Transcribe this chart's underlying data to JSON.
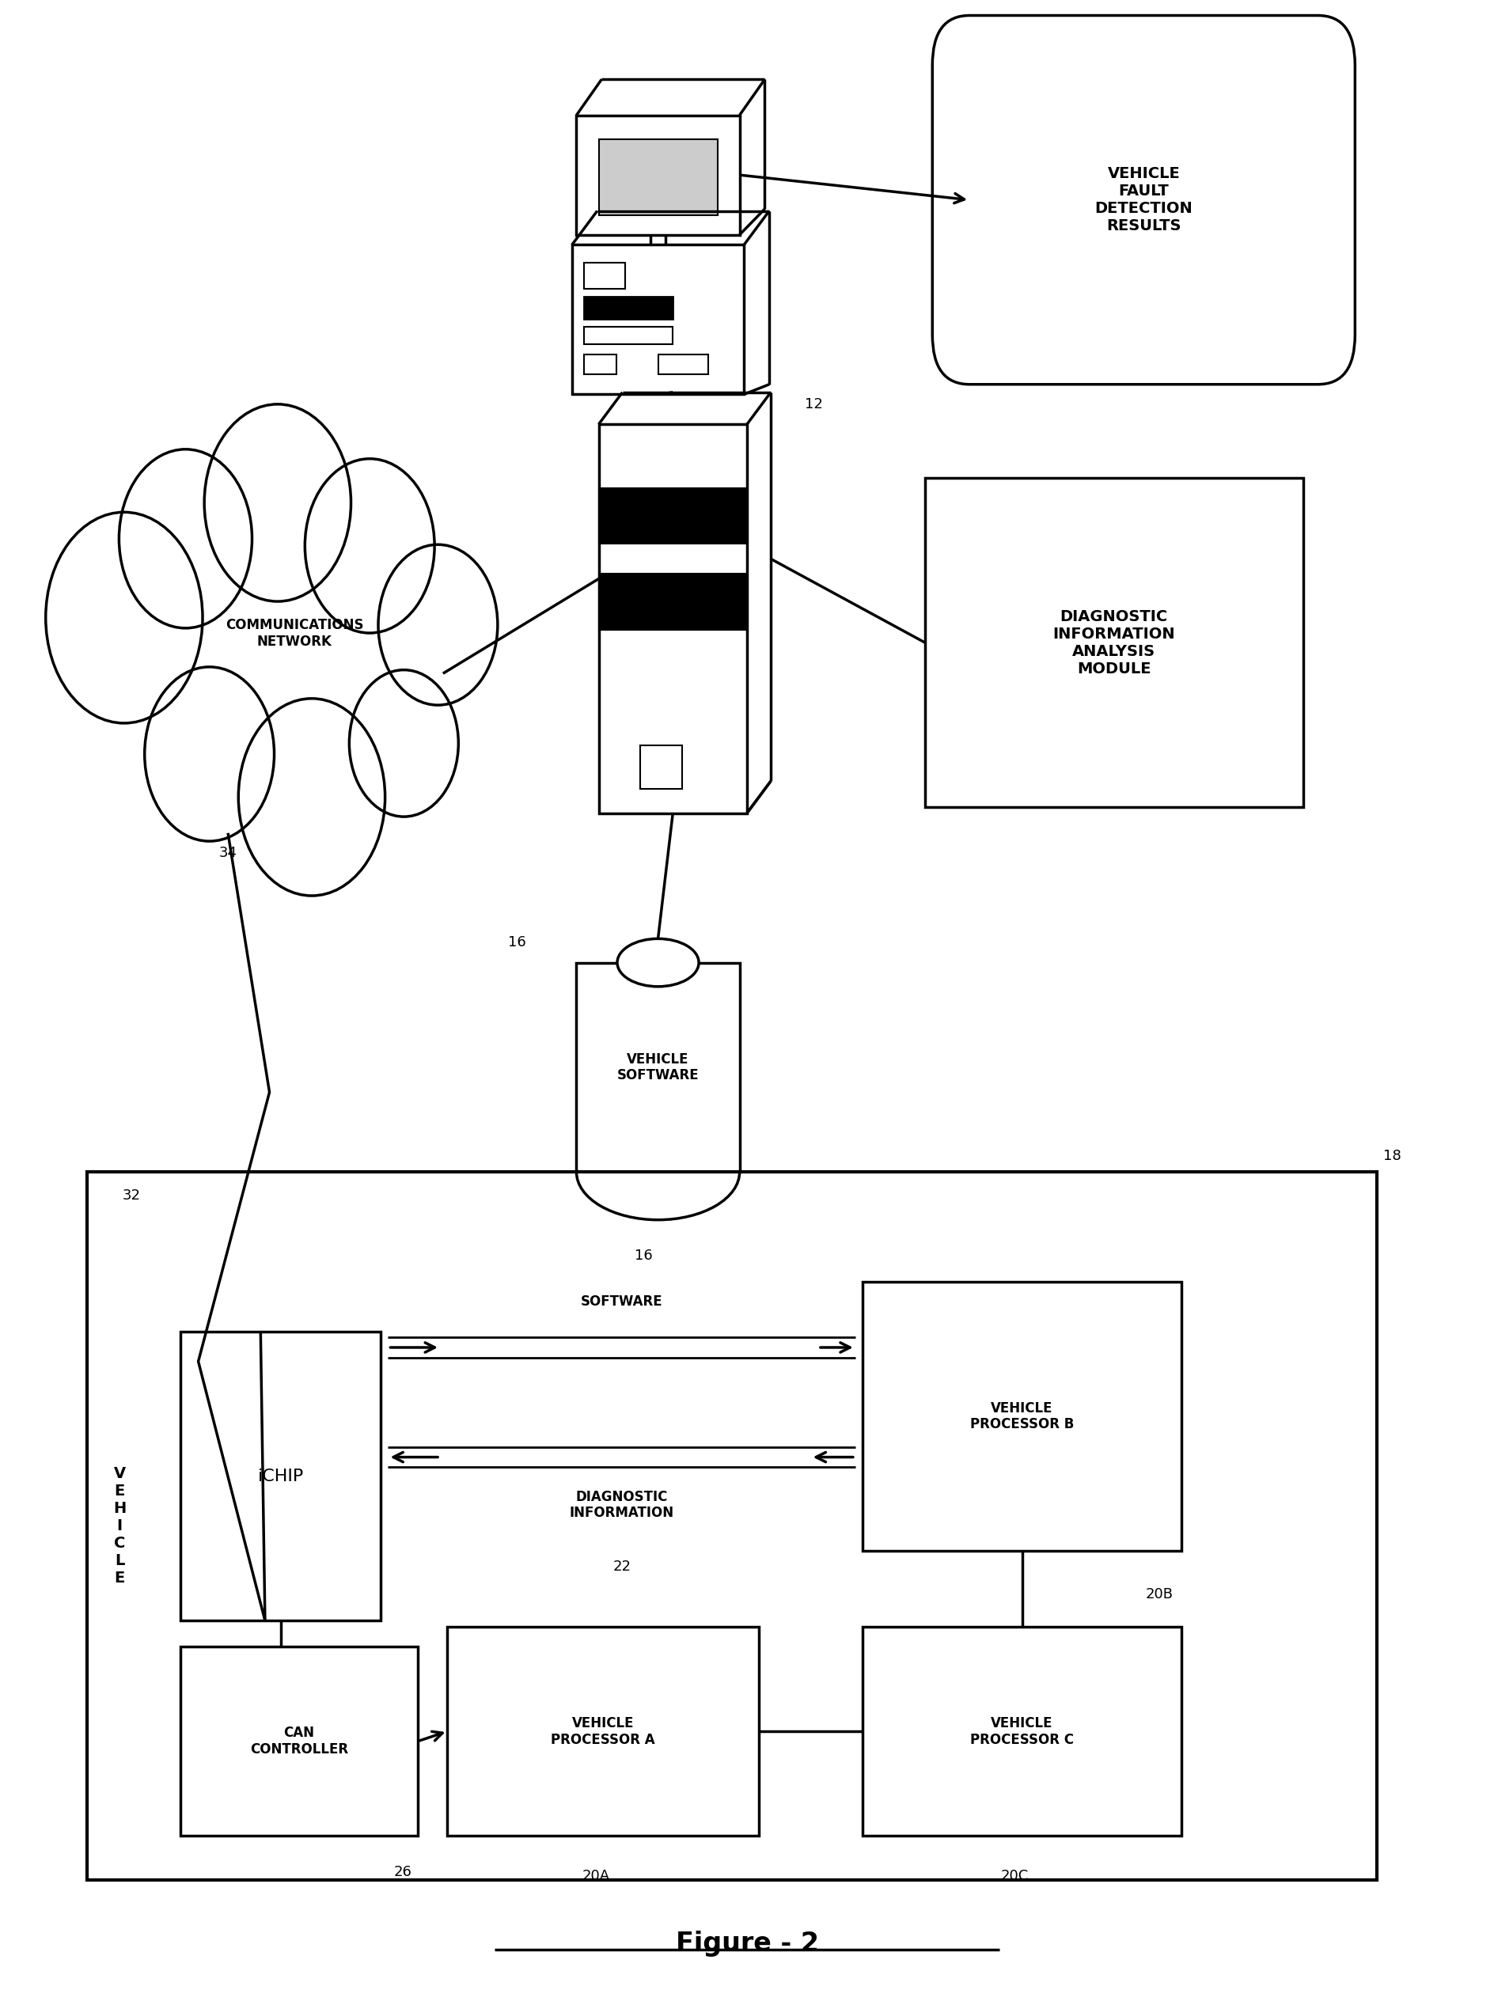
{
  "bg_color": "#ffffff",
  "line_color": "#000000",
  "figure_title": "Figure - 2",
  "labels": {
    "vehicle_fault": "VEHICLE\nFAULT\nDETECTION\nRESULTS",
    "comm_network": "COMMUNICATIONS\nNETWORK",
    "diag_module": "DIAGNOSTIC\nINFORMATION\nANALYSIS\nMODULE",
    "vehicle_software": "VEHICLE\nSOFTWARE",
    "ichip": "iCHIP",
    "can_controller": "CAN\nCONTROLLER",
    "veh_proc_a": "VEHICLE\nPROCESSOR A",
    "veh_proc_b": "VEHICLE\nPROCESSOR B",
    "veh_proc_c": "VEHICLE\nPROCESSOR C",
    "software_label": "SOFTWARE",
    "diag_info_label": "DIAGNOSTIC\nINFORMATION",
    "vehicle_vert": "V\nE\nH\nI\nC\nL\nE",
    "ref_12": "12",
    "ref_16_db": "16",
    "ref_16_sw": "16",
    "ref_18": "18",
    "ref_20a": "20A",
    "ref_20b": "20B",
    "ref_20c": "20C",
    "ref_22": "22",
    "ref_26": "26",
    "ref_32": "32",
    "ref_34": "34"
  }
}
